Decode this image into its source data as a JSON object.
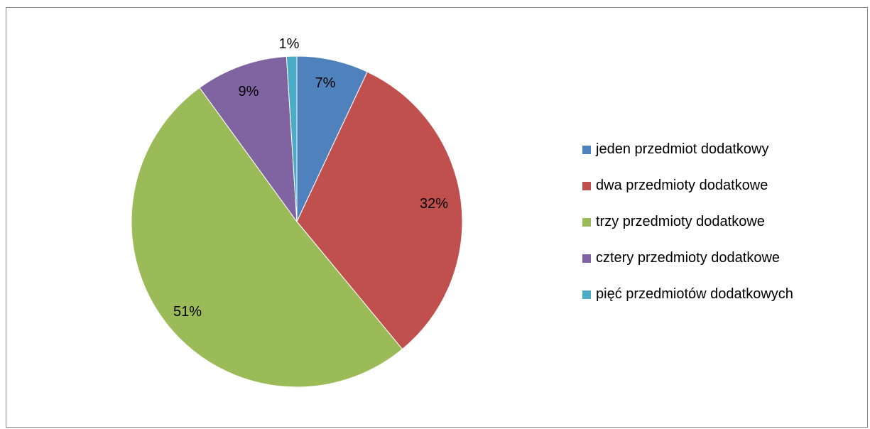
{
  "chart_data": {
    "type": "pie",
    "categories": [
      "jeden przedmiot dodatkowy",
      "dwa przedmioty dodatkowe",
      "trzy przedmioty dodatkowe",
      "cztery przedmioty dodatkowe",
      "pięć przedmiotów dodatkowych"
    ],
    "values": [
      7,
      32,
      51,
      9,
      1
    ],
    "labels": [
      "7%",
      "32%",
      "51%",
      "9%",
      "1%"
    ],
    "colors": [
      "#4F81BD",
      "#C0504D",
      "#9BBB59",
      "#8064A2",
      "#4BACC6"
    ],
    "title": "",
    "legend_position": "right"
  }
}
